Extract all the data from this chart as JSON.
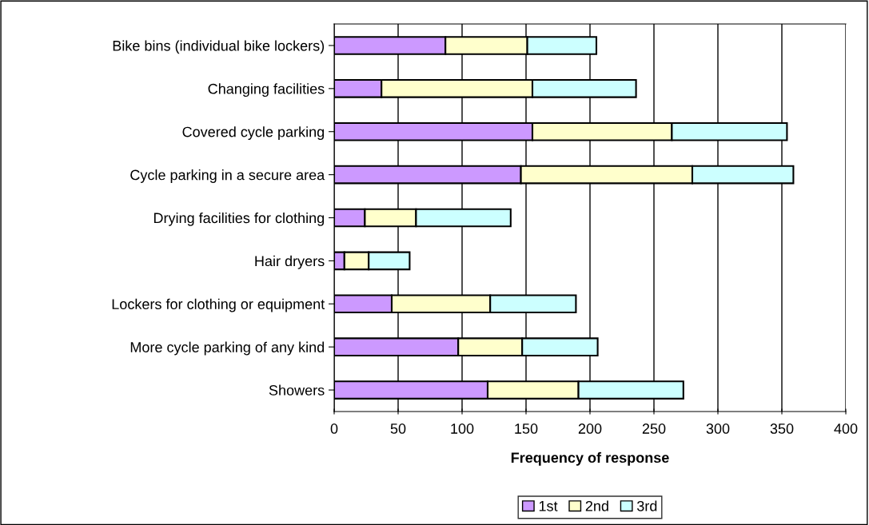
{
  "chart_data": {
    "type": "bar",
    "orientation": "horizontal",
    "stacked": true,
    "xlabel": "Frequency of response",
    "categories": [
      "Bike bins (individual bike lockers)",
      "Changing facilities",
      "Covered cycle parking",
      "Cycle parking in a secure area",
      "Drying facilities for clothing",
      "Hair dryers",
      "Lockers for clothing or equipment",
      "More cycle parking of any kind",
      "Showers"
    ],
    "series": [
      {
        "name": "1st",
        "color": "#cc99ff",
        "values": [
          87,
          37,
          155,
          146,
          24,
          8,
          45,
          97,
          120
        ]
      },
      {
        "name": "2nd",
        "color": "#ffffcc",
        "values": [
          64,
          118,
          109,
          134,
          40,
          19,
          77,
          50,
          71
        ]
      },
      {
        "name": "3rd",
        "color": "#ccffff",
        "values": [
          54,
          81,
          90,
          79,
          74,
          32,
          67,
          59,
          82
        ]
      }
    ],
    "xlim": [
      0,
      400
    ],
    "xticks": [
      0,
      50,
      100,
      150,
      200,
      250,
      300,
      350,
      400
    ],
    "grid": "x",
    "legend": "bottom"
  }
}
